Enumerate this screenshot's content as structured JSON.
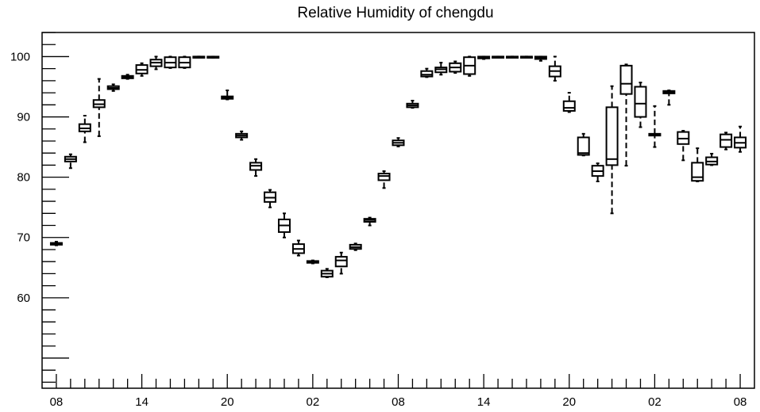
{
  "chart_data": {
    "type": "box",
    "title": "Relative Humidity of chengdu",
    "xlabel": "",
    "ylabel": "",
    "ylim": [
      45,
      104
    ],
    "xlim": [
      0,
      50
    ],
    "y_ticks": [
      60,
      70,
      80,
      90,
      100
    ],
    "x_ticks": [
      {
        "pos": 1,
        "label": "08"
      },
      {
        "pos": 7,
        "label": "14"
      },
      {
        "pos": 13,
        "label": "20"
      },
      {
        "pos": 19,
        "label": "02"
      },
      {
        "pos": 25,
        "label": "08"
      },
      {
        "pos": 31,
        "label": "14"
      },
      {
        "pos": 37,
        "label": "20"
      },
      {
        "pos": 43,
        "label": "02"
      },
      {
        "pos": 49,
        "label": "08"
      }
    ],
    "boxes": [
      {
        "x": 1,
        "min": 68.7,
        "q1": 68.8,
        "median": 69.0,
        "q3": 69.1,
        "max": 69.3
      },
      {
        "x": 2,
        "min": 81.5,
        "q1": 82.6,
        "median": 83.0,
        "q3": 83.4,
        "max": 83.8
      },
      {
        "x": 3,
        "min": 85.8,
        "q1": 87.6,
        "median": 88.1,
        "q3": 88.8,
        "max": 90.2
      },
      {
        "x": 4,
        "min": 86.8,
        "q1": 91.6,
        "median": 92.1,
        "q3": 92.8,
        "max": 96.3
      },
      {
        "x": 5,
        "min": 94.3,
        "q1": 94.6,
        "median": 94.8,
        "q3": 95.1,
        "max": 95.4
      },
      {
        "x": 6,
        "min": 96.3,
        "q1": 96.4,
        "median": 96.6,
        "q3": 96.8,
        "max": 97.0
      },
      {
        "x": 7,
        "min": 96.8,
        "q1": 97.2,
        "median": 97.8,
        "q3": 98.6,
        "max": 98.9
      },
      {
        "x": 8,
        "min": 97.9,
        "q1": 98.4,
        "median": 99.0,
        "q3": 99.5,
        "max": 100.0
      },
      {
        "x": 9,
        "min": 98.1,
        "q1": 98.2,
        "median": 99.0,
        "q3": 99.9,
        "max": 100.0
      },
      {
        "x": 10,
        "min": 98.1,
        "q1": 98.2,
        "median": 99.0,
        "q3": 99.9,
        "max": 100.0
      },
      {
        "x": 11,
        "min": 100.0,
        "q1": 100.0,
        "median": 100.0,
        "q3": 100.0,
        "max": 100.0
      },
      {
        "x": 12,
        "min": 99.8,
        "q1": 99.8,
        "median": 99.9,
        "q3": 100.0,
        "max": 100.0
      },
      {
        "x": 13,
        "min": 92.9,
        "q1": 93.0,
        "median": 93.2,
        "q3": 93.4,
        "max": 94.4
      },
      {
        "x": 14,
        "min": 86.2,
        "q1": 86.6,
        "median": 86.9,
        "q3": 87.2,
        "max": 87.6
      },
      {
        "x": 15,
        "min": 80.2,
        "q1": 81.2,
        "median": 81.9,
        "q3": 82.4,
        "max": 83.0
      },
      {
        "x": 16,
        "min": 75.0,
        "q1": 75.9,
        "median": 76.6,
        "q3": 77.5,
        "max": 77.9
      },
      {
        "x": 17,
        "min": 70.0,
        "q1": 70.9,
        "median": 72.0,
        "q3": 73.0,
        "max": 74.0
      },
      {
        "x": 18,
        "min": 67.0,
        "q1": 67.4,
        "median": 68.1,
        "q3": 68.9,
        "max": 69.5
      },
      {
        "x": 19,
        "min": 65.7,
        "q1": 65.8,
        "median": 66.0,
        "q3": 66.1,
        "max": 66.2
      },
      {
        "x": 20,
        "min": 63.4,
        "q1": 63.5,
        "median": 64.0,
        "q3": 64.5,
        "max": 64.8
      },
      {
        "x": 21,
        "min": 64.0,
        "q1": 65.2,
        "median": 66.2,
        "q3": 66.8,
        "max": 67.5
      },
      {
        "x": 22,
        "min": 67.9,
        "q1": 68.1,
        "median": 68.4,
        "q3": 68.8,
        "max": 69.0
      },
      {
        "x": 23,
        "min": 72.0,
        "q1": 72.6,
        "median": 72.9,
        "q3": 73.1,
        "max": 73.3
      },
      {
        "x": 24,
        "min": 78.2,
        "q1": 79.5,
        "median": 80.2,
        "q3": 80.6,
        "max": 81.0
      },
      {
        "x": 25,
        "min": 85.1,
        "q1": 85.3,
        "median": 85.7,
        "q3": 86.1,
        "max": 86.5
      },
      {
        "x": 26,
        "min": 91.5,
        "q1": 91.6,
        "median": 91.9,
        "q3": 92.2,
        "max": 92.7
      },
      {
        "x": 27,
        "min": 96.6,
        "q1": 96.7,
        "median": 97.0,
        "q3": 97.6,
        "max": 98.0
      },
      {
        "x": 28,
        "min": 97.0,
        "q1": 97.4,
        "median": 97.9,
        "q3": 98.2,
        "max": 99.0
      },
      {
        "x": 29,
        "min": 97.3,
        "q1": 97.5,
        "median": 98.2,
        "q3": 98.9,
        "max": 99.2
      },
      {
        "x": 30,
        "min": 96.8,
        "q1": 97.1,
        "median": 98.5,
        "q3": 99.9,
        "max": 100.0
      },
      {
        "x": 31,
        "min": 99.6,
        "q1": 99.7,
        "median": 99.9,
        "q3": 100.0,
        "max": 100.0
      },
      {
        "x": 32,
        "min": 99.9,
        "q1": 100.0,
        "median": 100.0,
        "q3": 100.0,
        "max": 100.0
      },
      {
        "x": 33,
        "min": 100.0,
        "q1": 100.0,
        "median": 100.0,
        "q3": 100.0,
        "max": 100.0
      },
      {
        "x": 34,
        "min": 100.0,
        "q1": 100.0,
        "median": 100.0,
        "q3": 100.0,
        "max": 100.0
      },
      {
        "x": 35,
        "min": 99.3,
        "q1": 99.6,
        "median": 99.8,
        "q3": 100.0,
        "max": 100.0
      },
      {
        "x": 36,
        "min": 96.0,
        "q1": 96.7,
        "median": 97.6,
        "q3": 98.4,
        "max": 100.0
      },
      {
        "x": 37,
        "min": 90.8,
        "q1": 91.0,
        "median": 91.5,
        "q3": 92.6,
        "max": 94.0
      },
      {
        "x": 38,
        "min": 83.6,
        "q1": 83.7,
        "median": 84.0,
        "q3": 86.6,
        "max": 87.2
      },
      {
        "x": 39,
        "min": 79.3,
        "q1": 80.2,
        "median": 81.0,
        "q3": 81.9,
        "max": 82.3
      },
      {
        "x": 40,
        "min": 74.0,
        "q1": 82.0,
        "median": 83.0,
        "q3": 91.6,
        "max": 95.1
      },
      {
        "x": 41,
        "min": 81.9,
        "q1": 93.8,
        "median": 95.5,
        "q3": 98.5,
        "max": 98.7
      },
      {
        "x": 42,
        "min": 88.3,
        "q1": 90.0,
        "median": 92.2,
        "q3": 95.0,
        "max": 95.7
      },
      {
        "x": 43,
        "min": 85.0,
        "q1": 86.9,
        "median": 87.1,
        "q3": 87.2,
        "max": 91.8
      },
      {
        "x": 44,
        "min": 92.0,
        "q1": 93.9,
        "median": 94.1,
        "q3": 94.3,
        "max": 94.4
      },
      {
        "x": 45,
        "min": 82.8,
        "q1": 85.5,
        "median": 86.4,
        "q3": 87.5,
        "max": 87.7
      },
      {
        "x": 46,
        "min": 79.3,
        "q1": 79.4,
        "median": 80.0,
        "q3": 82.4,
        "max": 84.8
      },
      {
        "x": 47,
        "min": 82.0,
        "q1": 82.1,
        "median": 82.6,
        "q3": 83.3,
        "max": 83.9
      },
      {
        "x": 48,
        "min": 84.6,
        "q1": 85.0,
        "median": 86.2,
        "q3": 87.1,
        "max": 87.4
      },
      {
        "x": 49,
        "min": 84.2,
        "q1": 84.9,
        "median": 85.7,
        "q3": 86.6,
        "max": 88.4
      }
    ]
  }
}
